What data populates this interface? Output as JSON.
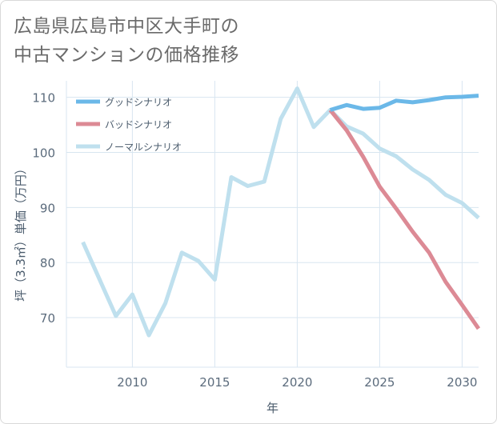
{
  "title_lines": [
    "広島県広島市中区大手町の",
    "中古マンションの価格推移"
  ],
  "chart_data": {
    "type": "line",
    "title": "広島県広島市中区大手町の中古マンションの価格推移",
    "xlabel": "年",
    "ylabel": "坪（3.3㎡）単価（万円）",
    "xlim": [
      2006,
      2031
    ],
    "ylim": [
      61,
      113
    ],
    "x_ticks": [
      2010,
      2015,
      2020,
      2025,
      2030
    ],
    "y_ticks": [
      70,
      80,
      90,
      100,
      110
    ],
    "grid": true,
    "legend_position": "top-left",
    "series": [
      {
        "name": "グッドシナリオ",
        "color": "#6bb8e8",
        "x": [
          2022,
          2023,
          2024,
          2025,
          2026,
          2027,
          2028,
          2029,
          2030,
          2031
        ],
        "values": [
          107.7,
          108.6,
          107.9,
          108.1,
          109.4,
          109.1,
          109.5,
          110.0,
          110.1,
          110.3
        ]
      },
      {
        "name": "バッドシナリオ",
        "color": "#dc8a95",
        "x": [
          2022,
          2023,
          2024,
          2025,
          2026,
          2027,
          2028,
          2029,
          2030,
          2031
        ],
        "values": [
          107.7,
          104.0,
          99.2,
          93.8,
          89.8,
          85.6,
          81.8,
          76.5,
          72.3,
          68.0
        ]
      },
      {
        "name": "ノーマルシナリオ",
        "color": "#bfe0ee",
        "x": [
          2007,
          2008,
          2009,
          2010,
          2011,
          2012,
          2013,
          2014,
          2015,
          2016,
          2017,
          2018,
          2019,
          2020,
          2021,
          2022,
          2023,
          2024,
          2025,
          2026,
          2027,
          2028,
          2029,
          2030,
          2031
        ],
        "values": [
          83.7,
          77.0,
          70.3,
          74.2,
          66.8,
          72.6,
          81.8,
          80.3,
          76.9,
          95.5,
          93.9,
          94.7,
          106.1,
          111.6,
          104.6,
          107.7,
          104.7,
          103.4,
          100.7,
          99.3,
          96.9,
          95.0,
          92.3,
          90.8,
          88.1
        ]
      }
    ]
  }
}
